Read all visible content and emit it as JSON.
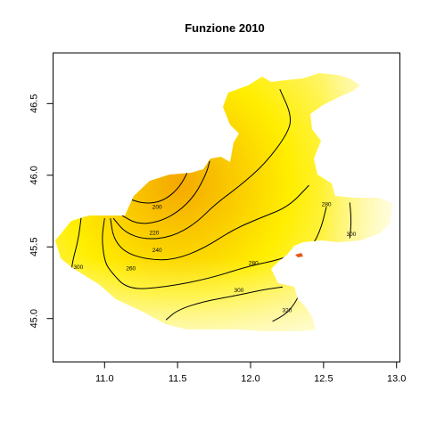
{
  "title": "Funzione 2010",
  "chart_data": {
    "type": "heatmap",
    "title": "Funzione 2010",
    "xlabel": "",
    "ylabel": "",
    "xlim": [
      10.65,
      13.02
    ],
    "ylim": [
      44.7,
      46.85
    ],
    "x_ticks": [
      11.0,
      11.5,
      12.0,
      12.5,
      13.0
    ],
    "y_ticks": [
      45.0,
      45.5,
      46.0,
      46.5
    ],
    "x_tick_labels": [
      "11.0",
      "11.5",
      "12.0",
      "12.5",
      "13.0"
    ],
    "y_tick_labels": [
      "45.0",
      "45.5",
      "46.0",
      "46.5"
    ],
    "color_scale": {
      "low": "#f5a800",
      "mid": "#ffee00",
      "high": "#fffef0"
    },
    "value_range": [
      190,
      330
    ],
    "contour_levels": [
      200,
      220,
      240,
      260,
      280,
      300,
      320
    ],
    "contours": [
      {
        "level": 200,
        "label": "200",
        "points": [
          [
            11.18,
            45.83
          ],
          [
            11.28,
            45.8
          ],
          [
            11.4,
            45.82
          ],
          [
            11.5,
            45.9
          ],
          [
            11.56,
            46.0
          ],
          [
            11.58,
            46.06
          ]
        ]
      },
      {
        "level": 220,
        "label": "220",
        "points": [
          [
            11.12,
            45.72
          ],
          [
            11.22,
            45.66
          ],
          [
            11.36,
            45.67
          ],
          [
            11.5,
            45.74
          ],
          [
            11.62,
            45.86
          ],
          [
            11.7,
            46.02
          ],
          [
            11.72,
            46.1
          ]
        ]
      },
      {
        "level": 240,
        "label": "240",
        "points": [
          [
            11.06,
            45.7
          ],
          [
            11.14,
            45.6
          ],
          [
            11.28,
            45.55
          ],
          [
            11.46,
            45.57
          ],
          [
            11.62,
            45.66
          ],
          [
            11.76,
            45.8
          ],
          [
            11.92,
            45.92
          ],
          [
            12.1,
            46.08
          ],
          [
            12.26,
            46.3
          ],
          [
            12.28,
            46.42
          ],
          [
            12.2,
            46.6
          ]
        ]
      },
      {
        "level": 260,
        "label": "260",
        "points": [
          [
            11.04,
            45.7
          ],
          [
            11.06,
            45.56
          ],
          [
            11.14,
            45.46
          ],
          [
            11.3,
            45.41
          ],
          [
            11.48,
            45.41
          ],
          [
            11.68,
            45.49
          ],
          [
            11.88,
            45.62
          ],
          [
            12.06,
            45.7
          ],
          [
            12.26,
            45.78
          ],
          [
            12.4,
            45.93
          ]
        ]
      },
      {
        "level": 280,
        "label": "280",
        "points": [
          [
            11.0,
            45.7
          ],
          [
            10.98,
            45.56
          ],
          [
            11.0,
            45.4
          ],
          [
            11.04,
            45.33
          ],
          [
            11.16,
            45.2
          ],
          [
            11.42,
            45.22
          ],
          [
            11.72,
            45.28
          ],
          [
            12.0,
            45.37
          ],
          [
            12.2,
            45.41
          ],
          [
            12.42,
            45.5
          ],
          [
            12.48,
            45.62
          ],
          [
            12.52,
            45.78
          ]
        ]
      },
      {
        "level": 300,
        "label": "300",
        "points": [
          [
            10.84,
            45.71
          ],
          [
            10.82,
            45.55
          ],
          [
            10.78,
            45.4
          ],
          [
            10.77,
            45.3
          ]
        ]
      },
      {
        "level": 300,
        "label": "300",
        "points": [
          [
            11.42,
            44.99
          ],
          [
            11.5,
            45.06
          ],
          [
            11.68,
            45.12
          ],
          [
            11.9,
            45.16
          ],
          [
            12.08,
            45.2
          ],
          [
            12.22,
            45.22
          ]
        ]
      },
      {
        "level": 300,
        "label": "300",
        "points": [
          [
            12.68,
            45.81
          ],
          [
            12.69,
            45.68
          ],
          [
            12.68,
            45.56
          ]
        ]
      },
      {
        "level": 320,
        "label": "320",
        "points": [
          [
            12.15,
            44.98
          ],
          [
            12.24,
            45.03
          ],
          [
            12.3,
            45.1
          ],
          [
            12.34,
            45.18
          ]
        ]
      }
    ],
    "contour_labels": [
      {
        "text": "200",
        "x": 11.36,
        "y": 45.78
      },
      {
        "text": "220",
        "x": 11.34,
        "y": 45.6
      },
      {
        "text": "240",
        "x": 11.36,
        "y": 45.48
      },
      {
        "text": "260",
        "x": 11.18,
        "y": 45.35
      },
      {
        "text": "280",
        "x": 12.02,
        "y": 45.39
      },
      {
        "text": "300",
        "x": 10.82,
        "y": 45.36
      },
      {
        "text": "300",
        "x": 11.92,
        "y": 45.2
      },
      {
        "text": "300",
        "x": 12.69,
        "y": 45.59
      },
      {
        "text": "320",
        "x": 12.25,
        "y": 45.06
      },
      {
        "text": "280",
        "x": 12.52,
        "y": 45.8
      }
    ],
    "grid": false,
    "legend": "none"
  }
}
